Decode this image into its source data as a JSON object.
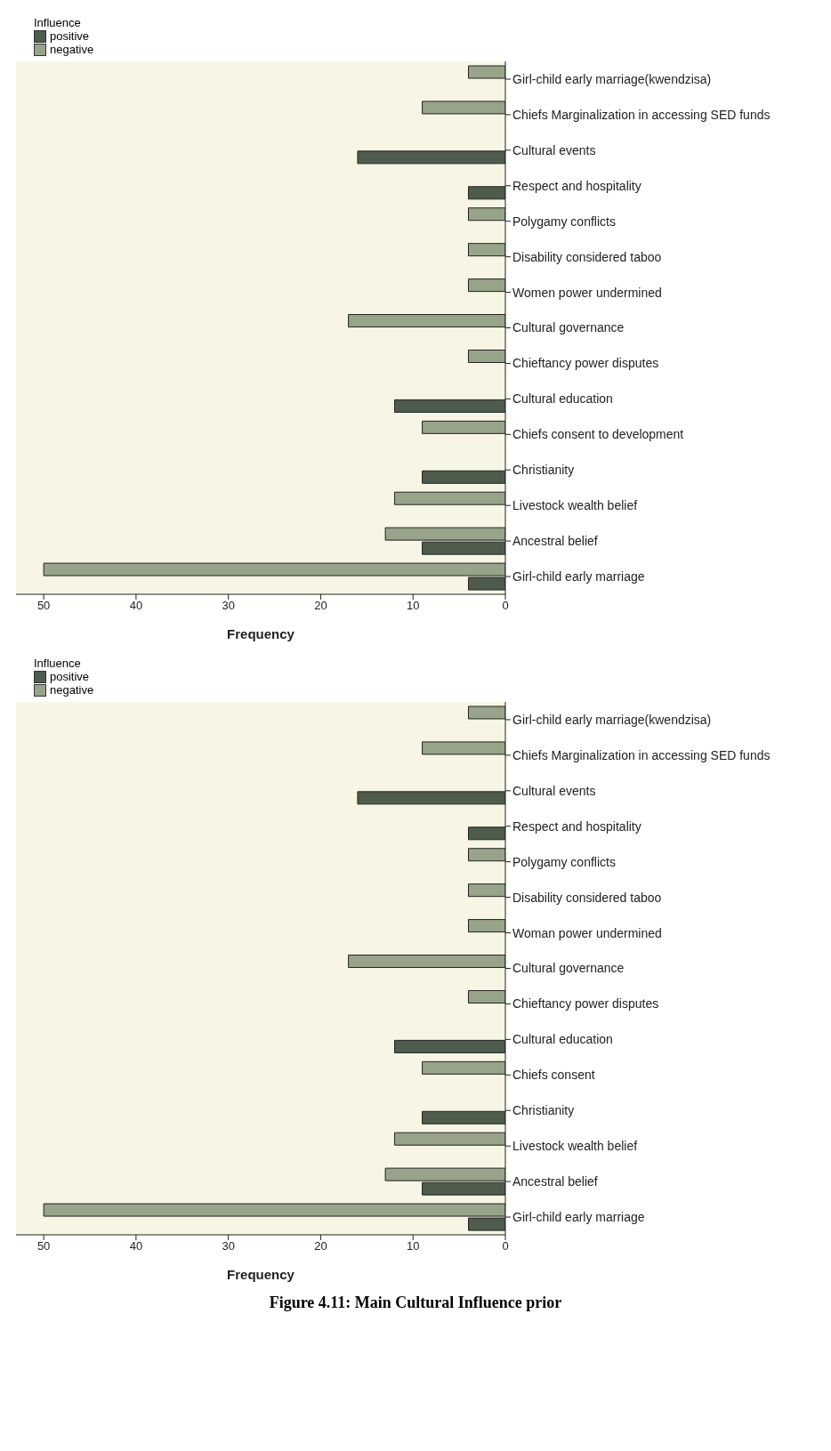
{
  "chart_data": [
    {
      "type": "bar",
      "orientation": "horizontal",
      "legend_title": "Influence",
      "legend": "top left",
      "xlabel": "Frequency",
      "xlim": [
        53,
        0
      ],
      "xticks": [
        50,
        40,
        30,
        20,
        10,
        0
      ],
      "categories": [
        "Girl-child early marriage(kwendzisa)",
        "Chiefs Marginalization in accessing SED funds",
        "Cultural events",
        "Respect and hospitality",
        "Polygamy conflicts",
        "Disability considered taboo",
        "Women power undermined",
        "Cultural governance",
        "Chieftancy power disputes",
        "Cultural education",
        "Chiefs consent to development",
        "Christianity",
        "Livestock wealth belief",
        "Ancestral belief",
        "Girl-child early marriage"
      ],
      "series": [
        {
          "name": "positive",
          "color": "#4d5c4c",
          "values": [
            null,
            null,
            16,
            4,
            null,
            null,
            null,
            null,
            null,
            12,
            null,
            9,
            null,
            9,
            4
          ]
        },
        {
          "name": "negative",
          "color": "#97a48a",
          "values": [
            4,
            9,
            null,
            null,
            4,
            4,
            4,
            17,
            4,
            null,
            9,
            null,
            12,
            13,
            50
          ]
        }
      ]
    },
    {
      "type": "bar",
      "orientation": "horizontal",
      "legend_title": "Influence",
      "legend": "top left",
      "xlabel": "Frequency",
      "xlim": [
        53,
        0
      ],
      "xticks": [
        50,
        40,
        30,
        20,
        10,
        0
      ],
      "categories": [
        "Girl-child early marriage(kwendzisa)",
        "Chiefs Marginalization in accessing SED funds",
        "Cultural events",
        "Respect and hospitality",
        "Polygamy conflicts",
        "Disability considered taboo",
        "Woman power undermined",
        "Cultural governance",
        "Chieftancy power disputes",
        "Cultural education",
        "Chiefs consent",
        "Christianity",
        "Livestock wealth belief",
        "Ancestral belief",
        "Girl-child early marriage"
      ],
      "series": [
        {
          "name": "positive",
          "color": "#4d5c4c",
          "values": [
            null,
            null,
            16,
            4,
            null,
            null,
            null,
            null,
            null,
            12,
            null,
            9,
            null,
            9,
            4
          ]
        },
        {
          "name": "negative",
          "color": "#97a48a",
          "values": [
            4,
            9,
            null,
            null,
            4,
            4,
            4,
            17,
            4,
            null,
            9,
            null,
            12,
            13,
            50
          ]
        }
      ],
      "annotations": [
        "Figure 4.11: Main Cultural Influence prior"
      ]
    }
  ]
}
